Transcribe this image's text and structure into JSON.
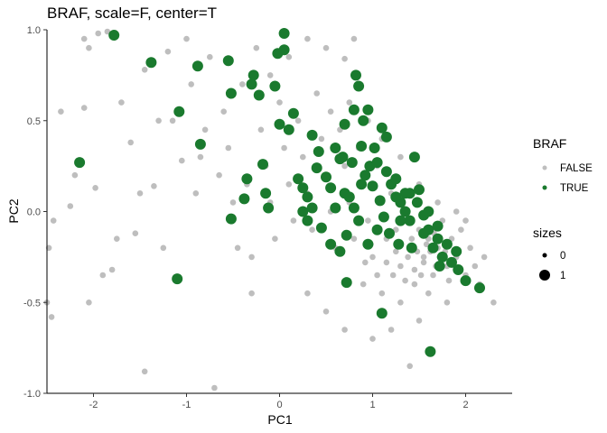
{
  "chart_data": {
    "type": "scatter",
    "title": "BRAF, scale=F, center=T",
    "xlabel": "PC1",
    "ylabel": "PC2",
    "xlim": [
      -2.5,
      2.5
    ],
    "ylim": [
      -1.0,
      1.0
    ],
    "xticks": [
      -2,
      -1,
      0,
      1,
      2
    ],
    "yticks": [
      -1.0,
      -0.5,
      0.0,
      0.5,
      1.0
    ],
    "x_tick_labels": [
      "-2",
      "-1",
      "0",
      "1",
      "2"
    ],
    "y_tick_labels": [
      "-1.0",
      "-0.5",
      "0.0",
      "0.5",
      "1.0"
    ],
    "grid": false,
    "legend": {
      "color": {
        "title": "BRAF",
        "entries": [
          {
            "label": "FALSE",
            "color": "#bebebe"
          },
          {
            "label": "TRUE",
            "color": "#1a7a2e"
          }
        ]
      },
      "size": {
        "title": "sizes",
        "entries": [
          {
            "label": "0",
            "size": 0
          },
          {
            "label": "1",
            "size": 1
          }
        ]
      },
      "placement": "right"
    },
    "series": [
      {
        "name": "FALSE",
        "size": 0,
        "color": "#bebebe",
        "points": [
          [
            -2.45,
            -0.58
          ],
          [
            -2.5,
            -0.5
          ],
          [
            -2.48,
            -0.2
          ],
          [
            -2.43,
            -0.05
          ],
          [
            -2.35,
            0.55
          ],
          [
            -2.1,
            0.95
          ],
          [
            -2.05,
            0.9
          ],
          [
            -1.95,
            0.98
          ],
          [
            -1.85,
            0.99
          ],
          [
            -2.2,
            0.2
          ],
          [
            -2.25,
            0.03
          ],
          [
            -2.05,
            -0.5
          ],
          [
            -2.1,
            0.57
          ],
          [
            -1.98,
            0.13
          ],
          [
            -1.9,
            -0.35
          ],
          [
            -1.8,
            -0.32
          ],
          [
            -1.75,
            -0.15
          ],
          [
            -1.7,
            0.6
          ],
          [
            -1.6,
            0.38
          ],
          [
            -1.55,
            -0.12
          ],
          [
            -1.5,
            0.1
          ],
          [
            -1.45,
            0.78
          ],
          [
            -1.45,
            -0.88
          ],
          [
            -1.35,
            0.14
          ],
          [
            -1.3,
            0.5
          ],
          [
            -1.25,
            -0.2
          ],
          [
            -1.2,
            0.88
          ],
          [
            -1.15,
            0.5
          ],
          [
            -1.05,
            0.28
          ],
          [
            -1.0,
            0.95
          ],
          [
            -0.95,
            0.7
          ],
          [
            -0.9,
            0.1
          ],
          [
            -0.85,
            0.3
          ],
          [
            -0.8,
            0.45
          ],
          [
            -0.75,
            0.85
          ],
          [
            -0.7,
            -0.97
          ],
          [
            -0.65,
            0.2
          ],
          [
            -0.6,
            0.55
          ],
          [
            -0.55,
            0.35
          ],
          [
            -0.5,
            0.05
          ],
          [
            -0.45,
            -0.2
          ],
          [
            -0.4,
            0.7
          ],
          [
            -0.35,
            0.15
          ],
          [
            -0.3,
            -0.25
          ],
          [
            -0.25,
            0.9
          ],
          [
            -0.2,
            0.45
          ],
          [
            -0.15,
            0.25
          ],
          [
            -0.1,
            0.05
          ],
          [
            -0.05,
            -0.15
          ],
          [
            0.0,
            0.6
          ],
          [
            0.05,
            0.35
          ],
          [
            0.1,
            0.15
          ],
          [
            0.15,
            -0.05
          ],
          [
            0.2,
            0.5
          ],
          [
            0.25,
            0.3
          ],
          [
            0.3,
            0.1
          ],
          [
            0.35,
            -0.1
          ],
          [
            0.4,
            0.65
          ],
          [
            0.45,
            0.4
          ],
          [
            0.5,
            0.2
          ],
          [
            0.55,
            0.0
          ],
          [
            0.6,
            -0.2
          ],
          [
            0.65,
            0.45
          ],
          [
            0.7,
            0.25
          ],
          [
            0.75,
            0.05
          ],
          [
            0.8,
            -0.15
          ],
          [
            0.85,
            0.35
          ],
          [
            0.9,
            0.15
          ],
          [
            0.95,
            -0.05
          ],
          [
            1.0,
            -0.25
          ],
          [
            1.05,
            0.25
          ],
          [
            1.1,
            0.05
          ],
          [
            1.15,
            -0.15
          ],
          [
            1.2,
            0.1
          ],
          [
            1.25,
            -0.1
          ],
          [
            1.3,
            -0.3
          ],
          [
            1.35,
            0.0
          ],
          [
            1.4,
            -0.2
          ],
          [
            1.45,
            -0.4
          ],
          [
            1.5,
            -0.1
          ],
          [
            1.55,
            -0.25
          ],
          [
            1.6,
            -0.15
          ],
          [
            1.65,
            -0.35
          ],
          [
            1.7,
            -0.2
          ],
          [
            1.75,
            -0.05
          ],
          [
            1.8,
            -0.3
          ],
          [
            1.85,
            -0.15
          ],
          [
            1.9,
            -0.25
          ],
          [
            1.95,
            -0.1
          ],
          [
            2.0,
            -0.35
          ],
          [
            2.05,
            -0.2
          ],
          [
            2.1,
            -0.3
          ],
          [
            2.15,
            -0.4
          ],
          [
            2.2,
            -0.25
          ],
          [
            2.3,
            -0.5
          ],
          [
            1.4,
            -0.85
          ],
          [
            1.2,
            -0.65
          ],
          [
            1.0,
            -0.7
          ],
          [
            0.7,
            -0.65
          ],
          [
            0.5,
            -0.55
          ],
          [
            0.3,
            -0.45
          ],
          [
            -0.3,
            -0.45
          ],
          [
            0.8,
            0.95
          ],
          [
            0.7,
            0.84
          ],
          [
            0.5,
            0.9
          ],
          [
            0.3,
            0.95
          ],
          [
            0.1,
            0.85
          ],
          [
            -0.1,
            0.75
          ],
          [
            0.55,
            0.55
          ],
          [
            0.75,
            0.6
          ],
          [
            0.95,
            0.5
          ],
          [
            1.1,
            0.4
          ],
          [
            1.3,
            0.3
          ],
          [
            1.5,
            0.15
          ],
          [
            1.7,
            0.05
          ],
          [
            1.9,
            0.0
          ],
          [
            2.0,
            -0.05
          ],
          [
            1.6,
            -0.45
          ],
          [
            1.8,
            -0.5
          ],
          [
            1.5,
            -0.6
          ],
          [
            1.3,
            -0.5
          ],
          [
            1.1,
            -0.45
          ],
          [
            0.9,
            -0.4
          ],
          [
            1.45,
            -0.32
          ],
          [
            1.55,
            -0.28
          ],
          [
            1.62,
            -0.22
          ],
          [
            1.68,
            -0.3
          ],
          [
            1.72,
            -0.25
          ],
          [
            1.58,
            -0.18
          ],
          [
            1.48,
            -0.22
          ],
          [
            1.52,
            -0.35
          ],
          [
            1.66,
            -0.12
          ],
          [
            1.78,
            -0.22
          ],
          [
            1.42,
            -0.15
          ],
          [
            1.38,
            -0.25
          ],
          [
            1.82,
            -0.38
          ],
          [
            1.35,
            -0.38
          ],
          [
            1.25,
            -0.22
          ],
          [
            1.22,
            -0.35
          ],
          [
            1.15,
            -0.28
          ],
          [
            1.05,
            -0.35
          ],
          [
            0.98,
            -0.18
          ],
          [
            0.92,
            -0.28
          ]
        ]
      },
      {
        "name": "TRUE",
        "size": 1,
        "color": "#1a7a2e",
        "points": [
          [
            -2.15,
            0.27
          ],
          [
            -1.78,
            0.97
          ],
          [
            -1.38,
            0.82
          ],
          [
            -1.1,
            -0.37
          ],
          [
            -1.08,
            0.55
          ],
          [
            -0.88,
            0.8
          ],
          [
            -0.85,
            0.37
          ],
          [
            -0.55,
            0.83
          ],
          [
            -0.52,
            0.65
          ],
          [
            -0.52,
            -0.04
          ],
          [
            -0.38,
            0.07
          ],
          [
            -0.35,
            0.18
          ],
          [
            -0.3,
            0.7
          ],
          [
            -0.28,
            0.75
          ],
          [
            -0.22,
            0.64
          ],
          [
            -0.18,
            0.26
          ],
          [
            -0.15,
            0.1
          ],
          [
            -0.12,
            0.02
          ],
          [
            -0.05,
            0.69
          ],
          [
            -0.02,
            0.87
          ],
          [
            0.0,
            0.48
          ],
          [
            0.05,
            0.98
          ],
          [
            0.05,
            0.89
          ],
          [
            0.1,
            0.45
          ],
          [
            0.15,
            0.54
          ],
          [
            0.2,
            0.18
          ],
          [
            0.25,
            0.13
          ],
          [
            0.3,
            0.08
          ],
          [
            0.35,
            0.42
          ],
          [
            0.4,
            0.24
          ],
          [
            0.42,
            0.33
          ],
          [
            0.5,
            0.19
          ],
          [
            0.55,
            -0.18
          ],
          [
            0.6,
            0.35
          ],
          [
            0.65,
            0.29
          ],
          [
            0.7,
            0.48
          ],
          [
            0.72,
            -0.13
          ],
          [
            0.75,
            0.08
          ],
          [
            0.8,
            0.56
          ],
          [
            0.82,
            0.75
          ],
          [
            0.85,
            0.69
          ],
          [
            0.88,
            0.36
          ],
          [
            0.9,
            0.5
          ],
          [
            0.92,
            0.2
          ],
          [
            0.95,
            0.56
          ],
          [
            1.0,
            0.14
          ],
          [
            1.05,
            0.27
          ],
          [
            1.08,
            0.06
          ],
          [
            1.1,
            0.46
          ],
          [
            1.12,
            -0.03
          ],
          [
            1.15,
            0.41
          ],
          [
            1.2,
            0.15
          ],
          [
            1.25,
            0.08
          ],
          [
            1.3,
            -0.05
          ],
          [
            1.35,
            0.0
          ],
          [
            1.4,
            0.1
          ],
          [
            1.45,
            0.3
          ],
          [
            1.5,
            0.12
          ],
          [
            1.55,
            -0.02
          ],
          [
            1.6,
            -0.1
          ],
          [
            1.65,
            -0.2
          ],
          [
            1.7,
            -0.08
          ],
          [
            1.75,
            -0.25
          ],
          [
            1.8,
            -0.18
          ],
          [
            1.85,
            -0.28
          ],
          [
            1.9,
            -0.22
          ],
          [
            2.0,
            -0.38
          ],
          [
            2.15,
            -0.42
          ],
          [
            1.62,
            -0.77
          ],
          [
            1.1,
            -0.56
          ],
          [
            0.72,
            -0.39
          ],
          [
            0.65,
            -0.22
          ],
          [
            0.45,
            -0.09
          ],
          [
            0.3,
            -0.05
          ],
          [
            1.15,
            0.22
          ],
          [
            1.25,
            0.18
          ],
          [
            1.35,
            0.1
          ],
          [
            1.05,
            -0.1
          ],
          [
            0.95,
            -0.18
          ],
          [
            0.85,
            -0.05
          ],
          [
            0.8,
            0.02
          ],
          [
            0.7,
            0.1
          ],
          [
            0.6,
            0.02
          ],
          [
            0.55,
            0.13
          ],
          [
            0.35,
            0.02
          ],
          [
            0.25,
            0.0
          ],
          [
            1.48,
            0.05
          ],
          [
            1.55,
            -0.12
          ],
          [
            1.7,
            -0.15
          ],
          [
            1.3,
            0.05
          ],
          [
            1.28,
            -0.18
          ],
          [
            1.18,
            -0.12
          ],
          [
            1.4,
            -0.05
          ],
          [
            1.42,
            -0.2
          ],
          [
            1.6,
            0.0
          ],
          [
            1.72,
            -0.3
          ],
          [
            1.92,
            -0.32
          ],
          [
            0.78,
            0.27
          ],
          [
            0.68,
            0.3
          ],
          [
            0.97,
            0.25
          ],
          [
            1.02,
            0.35
          ],
          [
            0.88,
            0.15
          ]
        ]
      }
    ]
  }
}
